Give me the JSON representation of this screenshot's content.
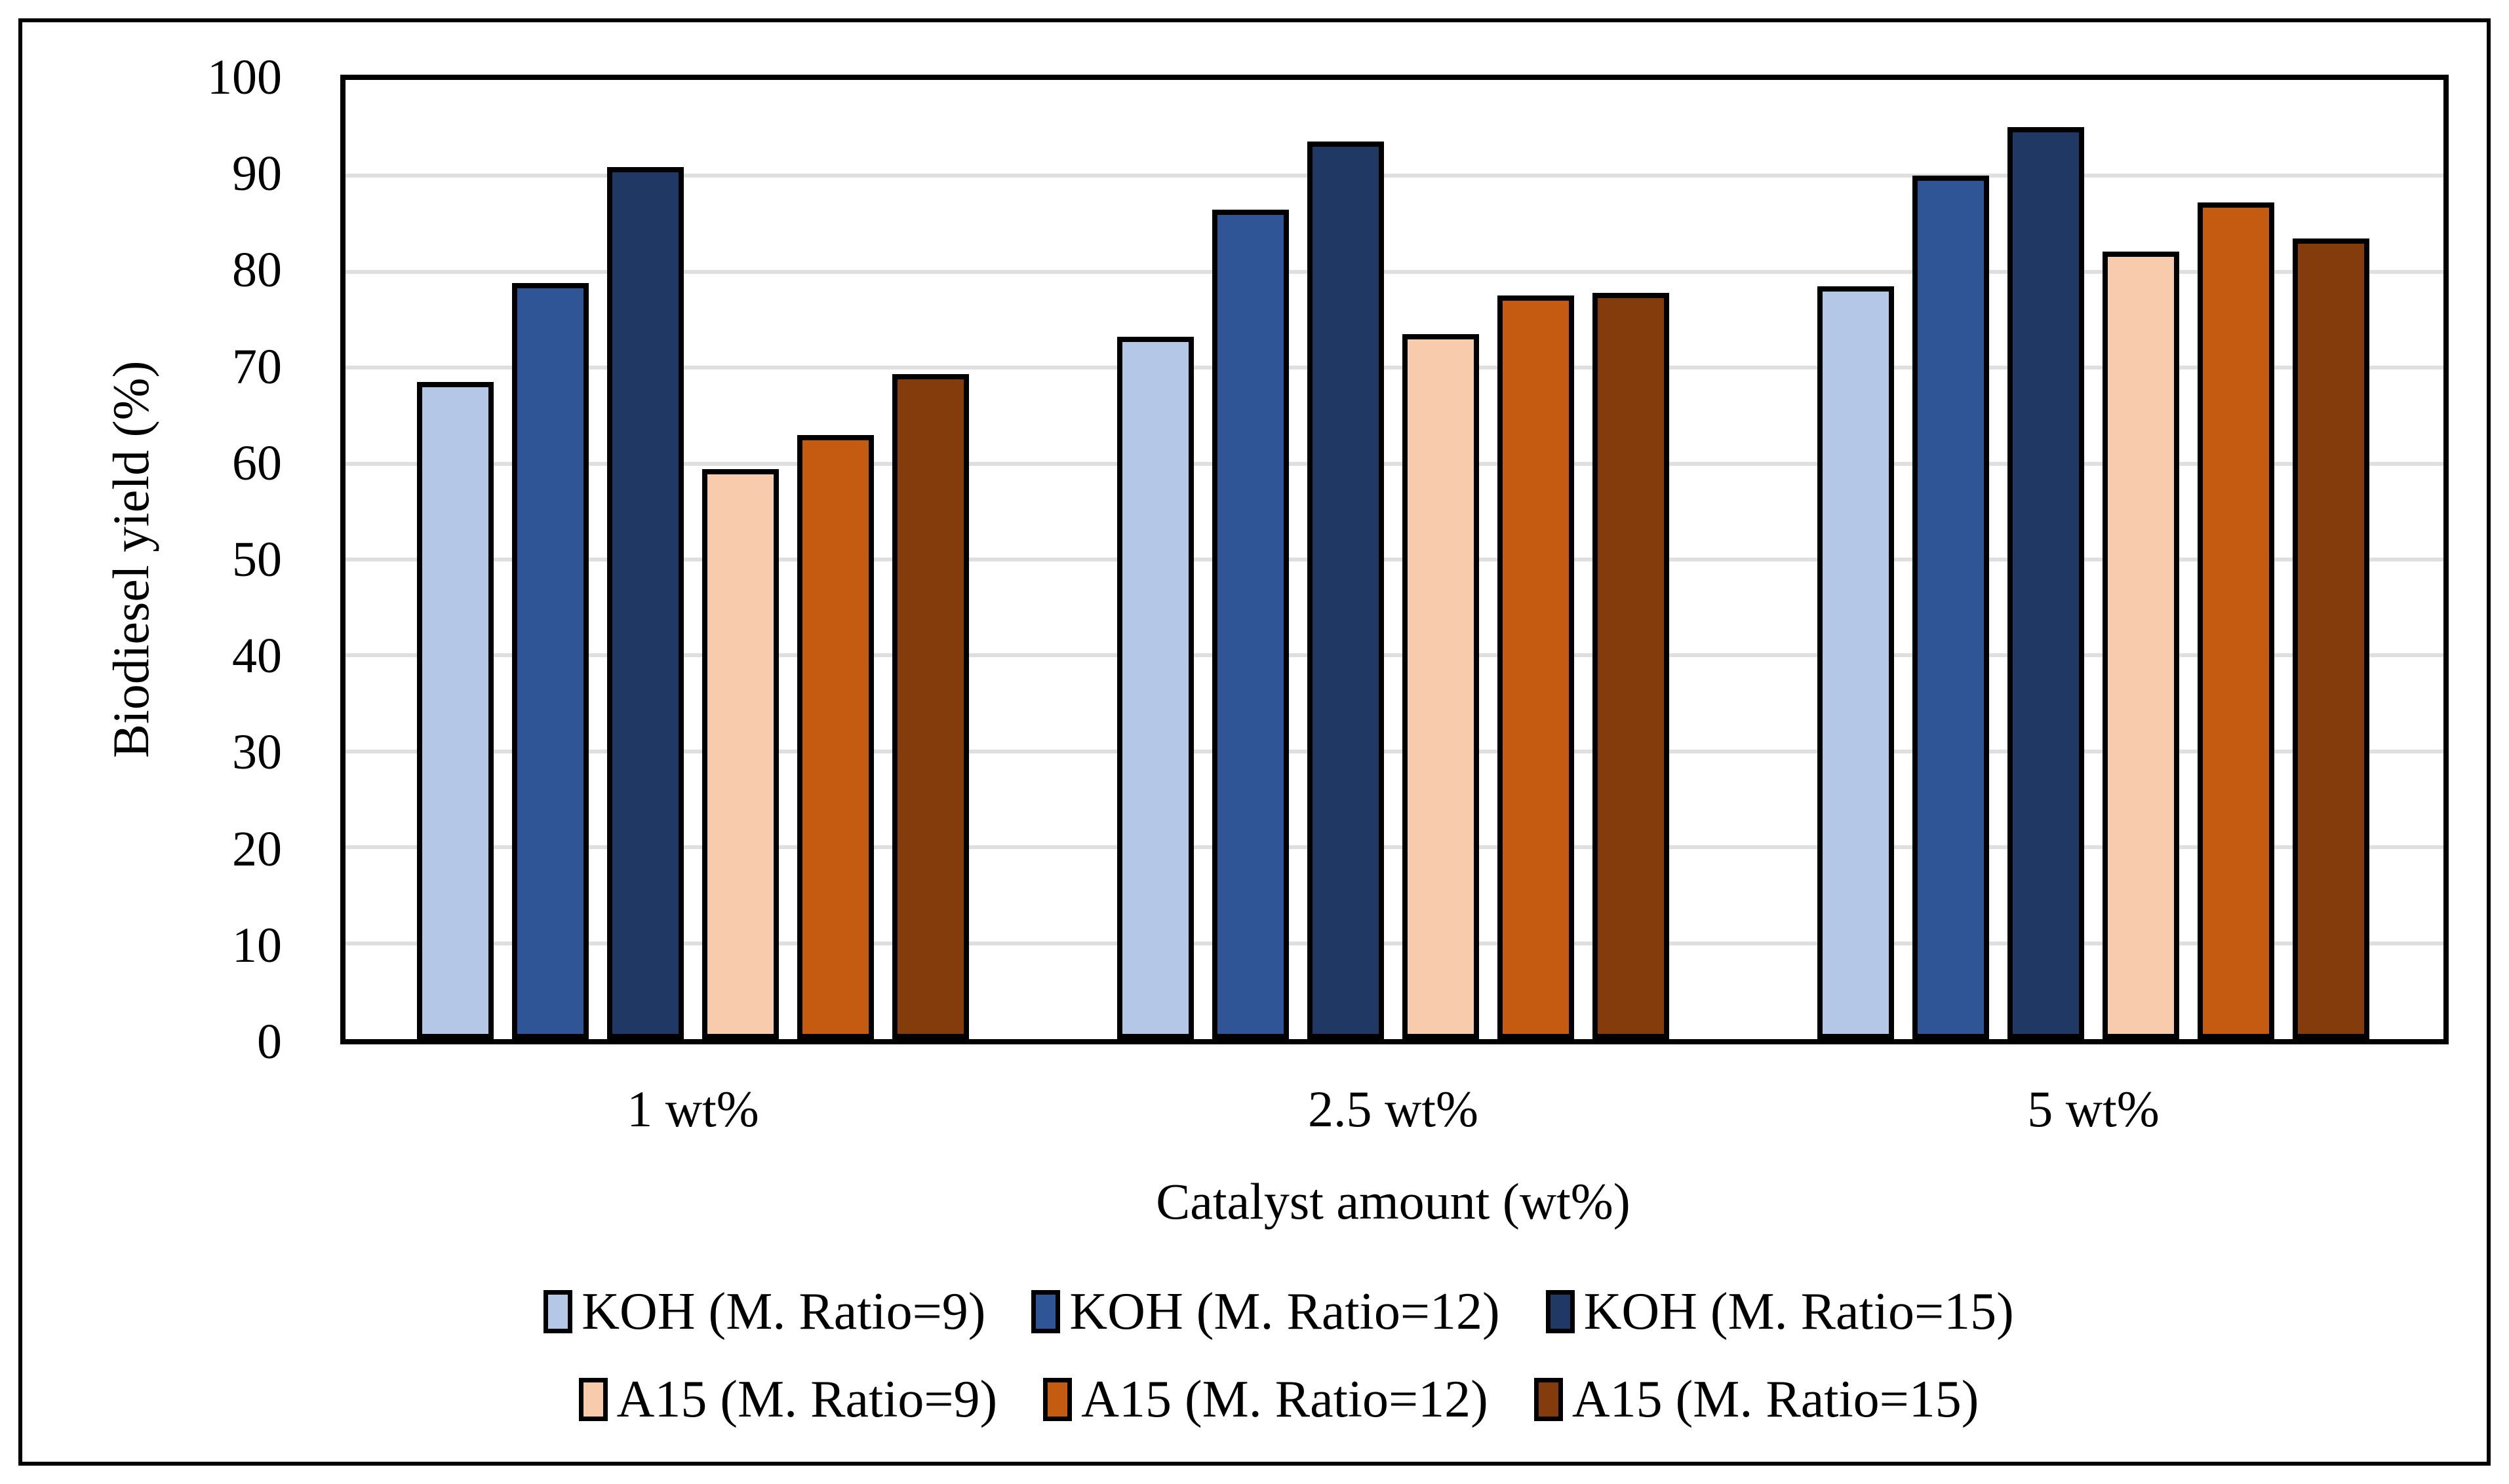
{
  "figure": {
    "kind": "grouped vertical bar chart"
  },
  "chart_data": {
    "type": "bar",
    "title": "",
    "categories": [
      "1 wt%",
      "2.5 wt%",
      "5 wt%"
    ],
    "series": [
      {
        "name": "KOH (M. Ratio=9)",
        "color": "#B4C7E7",
        "values": [
          68.5,
          73.2,
          78.5
        ]
      },
      {
        "name": "KOH (M. Ratio=12)",
        "color": "#2F5597",
        "values": [
          78.8,
          86.5,
          90.0
        ]
      },
      {
        "name": "KOH (M. Ratio=15)",
        "color": "#203864",
        "values": [
          90.9,
          93.6,
          95.1
        ]
      },
      {
        "name": "A15 (M. Ratio=9)",
        "color": "#F8CBAD",
        "values": [
          59.4,
          73.5,
          82.1
        ]
      },
      {
        "name": "A15 (M. Ratio=12)",
        "color": "#C55A11",
        "values": [
          63.0,
          77.5,
          87.2
        ]
      },
      {
        "name": "A15 (M. Ratio=15)",
        "color": "#843C0C",
        "values": [
          69.3,
          77.8,
          83.5
        ]
      }
    ],
    "xlabel": "Catalyst amount (wt%)",
    "ylabel": "Biodiesel yield (%)",
    "ylim": [
      0,
      100
    ],
    "yticks": [
      0,
      10,
      20,
      30,
      40,
      50,
      60,
      70,
      80,
      90,
      100
    ],
    "grid": true,
    "gridline_color": "#DFDFDF",
    "bar_border_color": "#000000",
    "legend_position": "bottom",
    "legend_rows": [
      [
        0,
        1,
        2
      ],
      [
        3,
        4,
        5
      ]
    ]
  }
}
